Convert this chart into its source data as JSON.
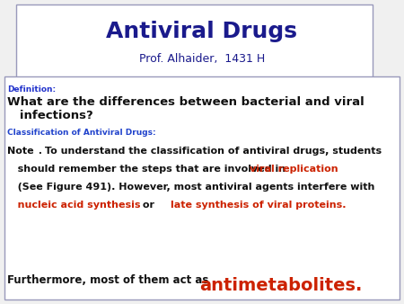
{
  "title_main": "Antiviral Drugs",
  "title_sub": "Prof. Alhaider,  1431 H",
  "title_color": "#1a1a8c",
  "bg_color": "#f0f0f0",
  "box_color": "#ffffff",
  "border_color": "#9999bb",
  "definition_label": "Definition:",
  "definition_color": "#2233cc",
  "classification_label": "Classification of Antiviral Drugs:",
  "classification_color": "#2244cc",
  "red_color": "#cc2200",
  "black_color": "#111111",
  "note_black1": "Note",
  "note_dot": ".",
  "note_black1b": "  To understand the classification of antiviral drugs, students",
  "note_black2a": "   should remember the steps that are involved in ",
  "note_red2": "viral replication",
  "note_black3": "   (See Figure 491). However, most antiviral agents interfere with",
  "note_red4a": "   nucleic acid synthesis",
  "note_black4b": " or    ",
  "note_red4c": "late synthesis of viral proteins.",
  "final_black": "Furthermore, most of them act as ",
  "final_red": "antimetabolites.",
  "question_line1": "What are the differences between bacterial and viral",
  "question_line2": "   infections?"
}
